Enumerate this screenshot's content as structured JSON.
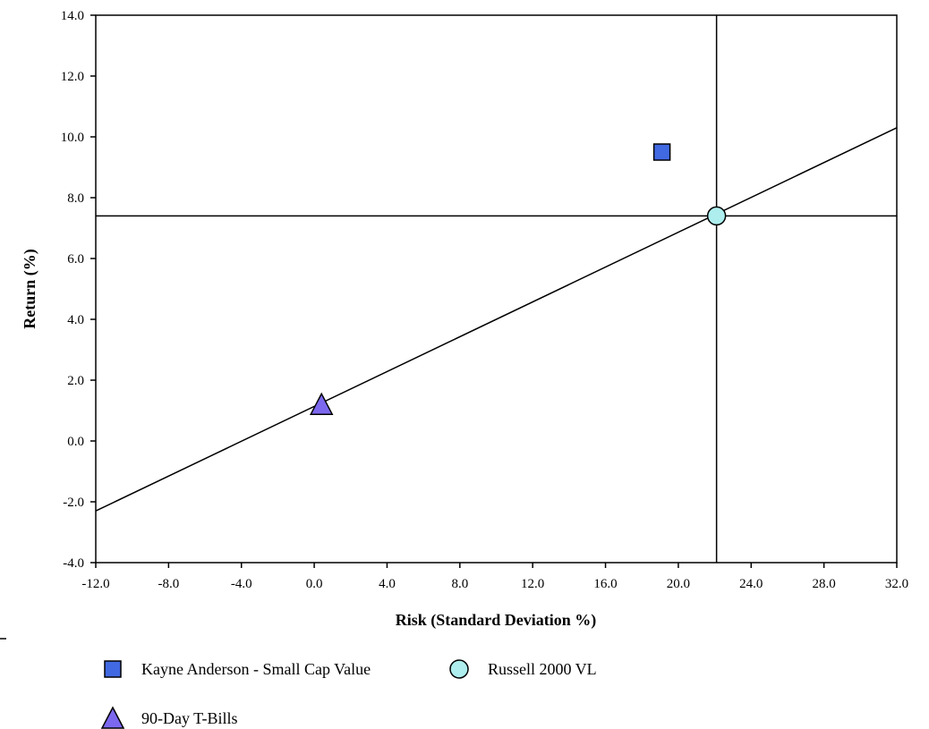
{
  "chart_data": {
    "type": "scatter",
    "xlabel": "Risk (Standard Deviation %)",
    "ylabel": "Return (%)",
    "xlim": [
      -12,
      32
    ],
    "ylim": [
      -4,
      14
    ],
    "x_ticks": [
      "-12.0",
      "-8.0",
      "-4.0",
      "0.0",
      "4.0",
      "8.0",
      "12.0",
      "16.0",
      "20.0",
      "24.0",
      "28.0",
      "32.0"
    ],
    "y_ticks": [
      "-4.0",
      "-2.0",
      "0.0",
      "2.0",
      "4.0",
      "6.0",
      "8.0",
      "10.0",
      "12.0",
      "14.0"
    ],
    "grid": false,
    "legend_position": "bottom",
    "series": [
      {
        "name": "Kayne Anderson - Small Cap Value",
        "marker": "square",
        "color": "#4169E1",
        "x": 19.1,
        "y": 9.5
      },
      {
        "name": "Russell 2000 VL",
        "marker": "circle",
        "color": "#AEEEEE",
        "x": 22.1,
        "y": 7.4
      },
      {
        "name": "90-Day T-Bills",
        "marker": "triangle",
        "color": "#7B68EE",
        "x": 0.4,
        "y": 1.2
      }
    ],
    "market_line": {
      "x": [
        -12,
        32
      ],
      "y": [
        -2.3,
        10.3
      ]
    },
    "benchmark_crosshair": {
      "x": 22.1,
      "y": 7.4
    }
  }
}
